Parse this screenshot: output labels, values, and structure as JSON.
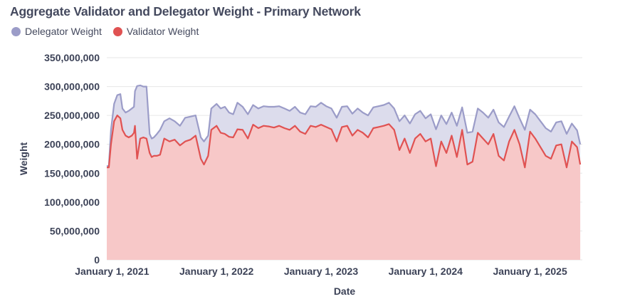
{
  "chart_data": {
    "type": "area",
    "title": "Aggregate Validator and Delegator Weight - Primary Network",
    "xlabel": "Date",
    "ylabel": "Weight",
    "ylim": [
      0,
      350000000
    ],
    "yticks": [
      0,
      50000000,
      100000000,
      150000000,
      200000000,
      250000000,
      300000000,
      350000000
    ],
    "ytick_labels": [
      "0",
      "50,000,000",
      "100,000,000",
      "150,000,000",
      "200,000,000",
      "250,000,000",
      "300,000,000",
      "350,000,000"
    ],
    "xlim": [
      2020.95,
      2025.5
    ],
    "xticks": [
      2021,
      2022,
      2023,
      2024,
      2025
    ],
    "xtick_labels": [
      "January 1, 2021",
      "January 1, 2022",
      "January 1, 2023",
      "January 1, 2024",
      "January 1, 2025"
    ],
    "legend_position": "top-left",
    "grid": "horizontal",
    "x": [
      2020.95,
      2020.97,
      2020.99,
      2021.02,
      2021.05,
      2021.08,
      2021.1,
      2021.13,
      2021.16,
      2021.19,
      2021.21,
      2021.22,
      2021.24,
      2021.27,
      2021.3,
      2021.33,
      2021.36,
      2021.38,
      2021.4,
      2021.43,
      2021.46,
      2021.5,
      2021.55,
      2021.6,
      2021.65,
      2021.7,
      2021.75,
      2021.8,
      2021.85,
      2021.88,
      2021.92,
      2021.95,
      2022.0,
      2022.04,
      2022.08,
      2022.12,
      2022.16,
      2022.2,
      2022.25,
      2022.3,
      2022.35,
      2022.4,
      2022.45,
      2022.5,
      2022.55,
      2022.6,
      2022.65,
      2022.7,
      2022.75,
      2022.8,
      2022.85,
      2022.9,
      2022.95,
      2023.0,
      2023.05,
      2023.1,
      2023.15,
      2023.2,
      2023.25,
      2023.3,
      2023.35,
      2023.4,
      2023.45,
      2023.5,
      2023.55,
      2023.6,
      2023.65,
      2023.7,
      2023.75,
      2023.8,
      2023.85,
      2023.9,
      2023.95,
      2024.0,
      2024.05,
      2024.1,
      2024.15,
      2024.2,
      2024.25,
      2024.3,
      2024.35,
      2024.4,
      2024.45,
      2024.5,
      2024.55,
      2024.6,
      2024.65,
      2024.7,
      2024.75,
      2024.8,
      2024.85,
      2024.9,
      2024.95,
      2025.0,
      2025.05,
      2025.1,
      2025.15,
      2025.2,
      2025.25,
      2025.3,
      2025.35,
      2025.4,
      2025.45,
      2025.48
    ],
    "series": [
      {
        "name": "Delegator Weight",
        "color": "#9b9cc8",
        "fill": "#dcdcec",
        "values": [
          162,
          163,
          225,
          270,
          285,
          287,
          262,
          255,
          258,
          262,
          265,
          292,
          301,
          302,
          300,
          300,
          218,
          210,
          212,
          218,
          225,
          240,
          245,
          240,
          232,
          246,
          248,
          250,
          212,
          205,
          215,
          262,
          270,
          262,
          265,
          255,
          252,
          272,
          265,
          252,
          268,
          262,
          266,
          265,
          265,
          266,
          262,
          258,
          265,
          255,
          252,
          266,
          265,
          272,
          266,
          262,
          246,
          265,
          266,
          253,
          262,
          255,
          250,
          264,
          266,
          268,
          272,
          262,
          240,
          250,
          236,
          252,
          258,
          245,
          252,
          226,
          250,
          235,
          255,
          232,
          264,
          220,
          222,
          262,
          255,
          246,
          260,
          238,
          230,
          248,
          266,
          245,
          225,
          260,
          252,
          240,
          228,
          222,
          238,
          240,
          218,
          236,
          224,
          200
        ]
      },
      {
        "name": "Validator Weight",
        "color": "#e05252",
        "fill": "#f7c8c8",
        "values": [
          160,
          160,
          200,
          240,
          250,
          245,
          225,
          215,
          212,
          215,
          220,
          232,
          175,
          210,
          212,
          210,
          185,
          178,
          180,
          180,
          182,
          210,
          205,
          208,
          198,
          205,
          208,
          215,
          175,
          165,
          180,
          225,
          232,
          220,
          218,
          213,
          212,
          226,
          225,
          210,
          234,
          228,
          232,
          231,
          229,
          232,
          228,
          225,
          232,
          222,
          218,
          232,
          230,
          234,
          230,
          226,
          205,
          230,
          232,
          215,
          225,
          220,
          212,
          228,
          230,
          232,
          235,
          225,
          190,
          210,
          185,
          210,
          218,
          205,
          210,
          162,
          205,
          185,
          215,
          178,
          225,
          165,
          170,
          220,
          210,
          200,
          218,
          180,
          172,
          205,
          225,
          200,
          160,
          222,
          210,
          195,
          180,
          175,
          198,
          200,
          160,
          205,
          195,
          165
        ]
      }
    ],
    "value_unit_multiplier": 1000000
  }
}
